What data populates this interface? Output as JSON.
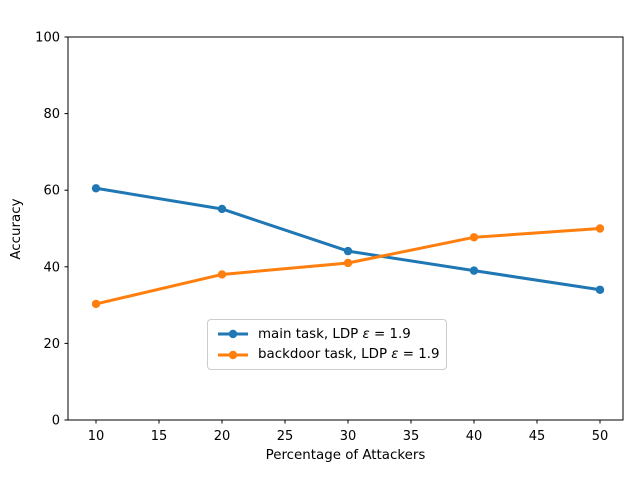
{
  "figure": {
    "background": "#ffffff",
    "axis_color": "#000000"
  },
  "chart_data": {
    "type": "line",
    "title": "",
    "xlabel": "Percentage of Attackers",
    "ylabel": "Accuracy",
    "x": [
      10,
      20,
      30,
      40,
      50
    ],
    "xticks": [
      10,
      15,
      20,
      25,
      30,
      35,
      40,
      45,
      50
    ],
    "yticks": [
      0,
      20,
      40,
      60,
      80,
      100
    ],
    "xlim": [
      8,
      52
    ],
    "ylim": [
      0,
      100
    ],
    "grid": false,
    "legend": {
      "position": "lower-center-inside",
      "border_color": "#cccccc",
      "background": "#ffffff"
    },
    "series": [
      {
        "id": "main-task",
        "name": "main task, LDP ε = 1.9",
        "legend_prefix": "main task, LDP ",
        "legend_symbol": "ε",
        "legend_rest": " = 1.9",
        "color": "#1f77b4",
        "marker": "circle",
        "values": [
          60.5,
          55.1,
          44.1,
          39,
          34
        ]
      },
      {
        "id": "backdoor-task",
        "name": "backdoor task, LDP ε = 1.9",
        "legend_prefix": "backdoor task, LDP ",
        "legend_symbol": "ε",
        "legend_rest": " = 1.9",
        "color": "#ff7f0e",
        "marker": "circle",
        "values": [
          30.3,
          38,
          41,
          47.7,
          50
        ]
      }
    ]
  }
}
